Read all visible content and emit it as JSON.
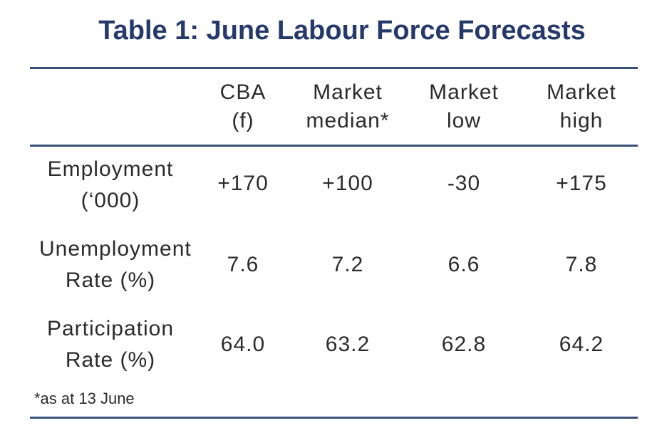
{
  "title": "Table 1: June Labour Force Forecasts",
  "table": {
    "header": [
      [
        "CBA",
        "(f)"
      ],
      [
        "Market",
        "median*"
      ],
      [
        "Market",
        "low"
      ],
      [
        "Market",
        "high"
      ]
    ],
    "rows": [
      {
        "label": [
          "Employment",
          "(‘000)"
        ],
        "cells": [
          "+170",
          "+100",
          "-30",
          "+175"
        ]
      },
      {
        "label": [
          "Unemployment",
          "Rate (%)"
        ],
        "cells": [
          "7.6",
          "7.2",
          "6.6",
          "7.8"
        ]
      },
      {
        "label": [
          "Participation",
          "Rate (%)"
        ],
        "cells": [
          "64.0",
          "63.2",
          "62.8",
          "64.2"
        ]
      }
    ]
  },
  "footnote": "*as at 13 June"
}
